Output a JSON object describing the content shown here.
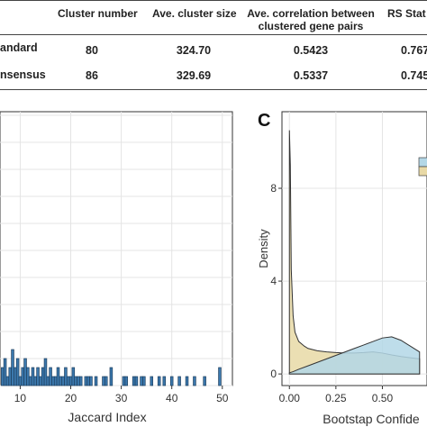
{
  "table": {
    "headers": [
      "Cluster number",
      "Ave. cluster size",
      "Ave. correlation between",
      "clustered gene pairs",
      "RS Stat"
    ],
    "rows": [
      {
        "label": "andard",
        "cluster_number": "80",
        "ave_cluster_size": "324.70",
        "ave_correlation": "0.5423",
        "rs_stat": "0.767"
      },
      {
        "label": "nsensus",
        "cluster_number": "86",
        "ave_cluster_size": "329.69",
        "ave_correlation": "0.5337",
        "rs_stat": "0.745"
      }
    ]
  },
  "panel_c_label": "C",
  "chart_data": [
    {
      "type": "bar",
      "xlabel": "Jaccard Index",
      "x_ticks": [
        "10",
        "20",
        "30",
        "40",
        "50"
      ],
      "xlim": [
        6,
        52
      ],
      "color": "#3b78ad",
      "bin_width": 0.5,
      "bins": [
        {
          "x": 6.5,
          "h": 2
        },
        {
          "x": 7.0,
          "h": 3
        },
        {
          "x": 7.5,
          "h": 1
        },
        {
          "x": 8.0,
          "h": 2
        },
        {
          "x": 8.5,
          "h": 4
        },
        {
          "x": 9.0,
          "h": 2
        },
        {
          "x": 9.5,
          "h": 3
        },
        {
          "x": 10.0,
          "h": 1
        },
        {
          "x": 10.5,
          "h": 2
        },
        {
          "x": 11.0,
          "h": 3
        },
        {
          "x": 11.5,
          "h": 2
        },
        {
          "x": 12.0,
          "h": 1
        },
        {
          "x": 12.5,
          "h": 2
        },
        {
          "x": 13.0,
          "h": 1
        },
        {
          "x": 13.5,
          "h": 2
        },
        {
          "x": 14.0,
          "h": 1
        },
        {
          "x": 14.5,
          "h": 2
        },
        {
          "x": 15.0,
          "h": 3
        },
        {
          "x": 15.5,
          "h": 1
        },
        {
          "x": 16.0,
          "h": 2
        },
        {
          "x": 16.5,
          "h": 1
        },
        {
          "x": 17.0,
          "h": 1
        },
        {
          "x": 17.5,
          "h": 2
        },
        {
          "x": 18.0,
          "h": 1
        },
        {
          "x": 18.5,
          "h": 1
        },
        {
          "x": 19.0,
          "h": 2
        },
        {
          "x": 19.5,
          "h": 1
        },
        {
          "x": 20.0,
          "h": 1
        },
        {
          "x": 20.5,
          "h": 2
        },
        {
          "x": 21.0,
          "h": 1
        },
        {
          "x": 21.5,
          "h": 1
        },
        {
          "x": 22.0,
          "h": 1
        },
        {
          "x": 23.0,
          "h": 1
        },
        {
          "x": 23.5,
          "h": 1
        },
        {
          "x": 24.0,
          "h": 1
        },
        {
          "x": 25.0,
          "h": 1
        },
        {
          "x": 26.5,
          "h": 1
        },
        {
          "x": 27.0,
          "h": 1
        },
        {
          "x": 28.0,
          "h": 2
        },
        {
          "x": 30.5,
          "h": 1
        },
        {
          "x": 31.0,
          "h": 1
        },
        {
          "x": 32.5,
          "h": 1
        },
        {
          "x": 33.0,
          "h": 1
        },
        {
          "x": 34.0,
          "h": 1
        },
        {
          "x": 34.5,
          "h": 1
        },
        {
          "x": 36.0,
          "h": 1
        },
        {
          "x": 37.5,
          "h": 1
        },
        {
          "x": 38.5,
          "h": 1
        },
        {
          "x": 40.0,
          "h": 1
        },
        {
          "x": 41.5,
          "h": 1
        },
        {
          "x": 43.0,
          "h": 1
        },
        {
          "x": 44.5,
          "h": 1
        },
        {
          "x": 46.5,
          "h": 1
        },
        {
          "x": 49.5,
          "h": 2
        }
      ],
      "grid": true
    },
    {
      "type": "area",
      "xlabel": "Bootstap Confide",
      "ylabel": "Density",
      "x_ticks": [
        "0.00",
        "0.25",
        "0.50"
      ],
      "y_ticks": [
        "0",
        "4",
        "8"
      ],
      "xlim": [
        -0.04,
        0.74
      ],
      "ylim": [
        -0.5,
        11.3
      ],
      "grid": true,
      "series": [
        {
          "color": "#e8d9a6",
          "x": [
            0.0,
            0.005,
            0.01,
            0.02,
            0.03,
            0.05,
            0.08,
            0.1,
            0.15,
            0.2,
            0.25,
            0.3,
            0.35,
            0.4,
            0.45,
            0.5,
            0.55,
            0.6,
            0.65,
            0.7
          ],
          "y": [
            10.5,
            9.0,
            4.5,
            2.5,
            1.8,
            1.4,
            1.2,
            1.1,
            1.0,
            0.95,
            0.92,
            0.9,
            0.9,
            0.92,
            0.95,
            0.9,
            0.82,
            0.75,
            0.7,
            0.65
          ]
        },
        {
          "color": "#b3d7e6",
          "x": [
            0.0,
            0.02,
            0.05,
            0.1,
            0.15,
            0.2,
            0.25,
            0.3,
            0.35,
            0.4,
            0.45,
            0.5,
            0.55,
            0.6,
            0.65,
            0.7
          ],
          "y": [
            0.05,
            0.1,
            0.2,
            0.35,
            0.5,
            0.65,
            0.8,
            0.95,
            1.1,
            1.25,
            1.4,
            1.55,
            1.6,
            1.45,
            1.2,
            0.95
          ]
        }
      ]
    }
  ]
}
